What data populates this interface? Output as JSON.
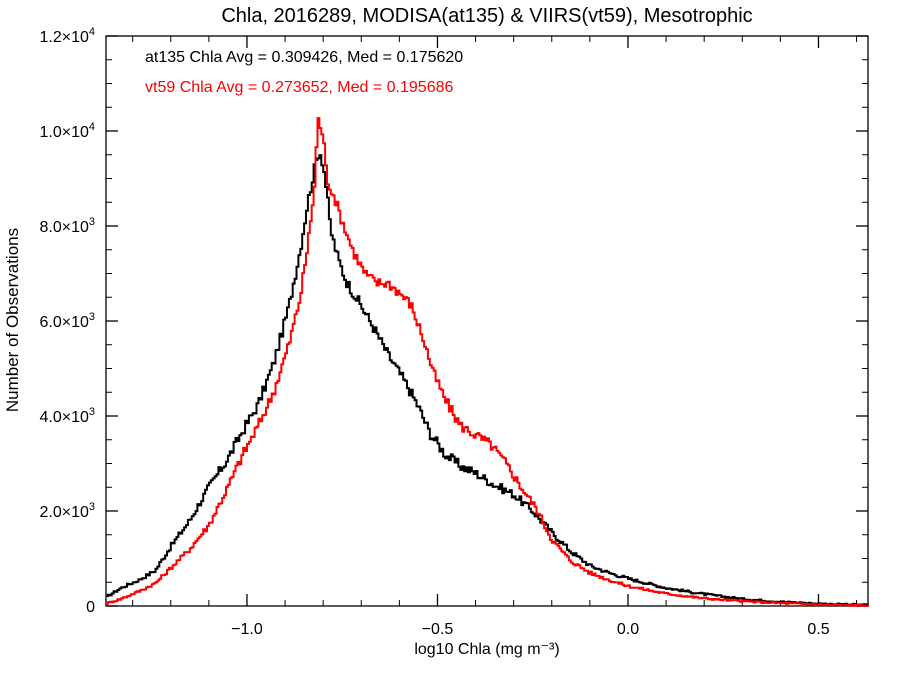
{
  "chart_data": {
    "type": "line",
    "title": "Chla, 2016289, MODISA(at135) & VIIRS(vt59), Mesotrophic",
    "xlabel": "log10 Chla (mg m⁻³)",
    "ylabel": "Number of Observations",
    "xlim": [
      -1.37,
      0.63
    ],
    "ylim": [
      0,
      12000
    ],
    "xticks": [
      {
        "value": -1.0,
        "label": "−1.0"
      },
      {
        "value": -0.5,
        "label": "−0.5"
      },
      {
        "value": 0.0,
        "label": "0.0"
      },
      {
        "value": 0.5,
        "label": "0.5"
      }
    ],
    "yticks": [
      {
        "value": 0,
        "mant": "0",
        "exp": ""
      },
      {
        "value": 2000,
        "mant": "2.0×10",
        "exp": "3"
      },
      {
        "value": 4000,
        "mant": "4.0×10",
        "exp": "3"
      },
      {
        "value": 6000,
        "mant": "6.0×10",
        "exp": "3"
      },
      {
        "value": 8000,
        "mant": "8.0×10",
        "exp": "3"
      },
      {
        "value": 10000,
        "mant": "1.0×10",
        "exp": "4"
      },
      {
        "value": 12000,
        "mant": "1.2×10",
        "exp": "4"
      }
    ],
    "grid": false,
    "annotations": [
      {
        "text": "at135 Chla Avg = 0.309426, Med = 0.175620",
        "color": "#000000"
      },
      {
        "text": "vt59 Chla Avg = 0.273652, Med = 0.195686",
        "color": "#ff0000"
      }
    ],
    "series": [
      {
        "color": "#000000",
        "points": [
          [
            -1.37,
            180
          ],
          [
            -1.33,
            380
          ],
          [
            -1.28,
            560
          ],
          [
            -1.24,
            750
          ],
          [
            -1.2,
            1250
          ],
          [
            -1.15,
            1800
          ],
          [
            -1.1,
            2500
          ],
          [
            -1.05,
            3100
          ],
          [
            -1.01,
            3700
          ],
          [
            -0.97,
            4250
          ],
          [
            -0.93,
            5100
          ],
          [
            -0.89,
            6300
          ],
          [
            -0.86,
            7500
          ],
          [
            -0.84,
            8500
          ],
          [
            -0.82,
            9300
          ],
          [
            -0.81,
            9600
          ],
          [
            -0.8,
            9300
          ],
          [
            -0.79,
            8700
          ],
          [
            -0.78,
            7900
          ],
          [
            -0.76,
            7300
          ],
          [
            -0.74,
            6850
          ],
          [
            -0.71,
            6450
          ],
          [
            -0.67,
            5900
          ],
          [
            -0.63,
            5300
          ],
          [
            -0.58,
            4650
          ],
          [
            -0.55,
            4200
          ],
          [
            -0.52,
            3650
          ],
          [
            -0.48,
            3200
          ],
          [
            -0.44,
            2950
          ],
          [
            -0.4,
            2800
          ],
          [
            -0.35,
            2550
          ],
          [
            -0.3,
            2350
          ],
          [
            -0.25,
            2000
          ],
          [
            -0.2,
            1550
          ],
          [
            -0.15,
            1150
          ],
          [
            -0.1,
            850
          ],
          [
            -0.05,
            700
          ],
          [
            0.0,
            580
          ],
          [
            0.1,
            380
          ],
          [
            0.2,
            250
          ],
          [
            0.3,
            150
          ],
          [
            0.4,
            90
          ],
          [
            0.5,
            50
          ],
          [
            0.63,
            20
          ]
        ]
      },
      {
        "color": "#ff0000",
        "points": [
          [
            -1.37,
            50
          ],
          [
            -1.33,
            150
          ],
          [
            -1.28,
            320
          ],
          [
            -1.24,
            480
          ],
          [
            -1.2,
            800
          ],
          [
            -1.15,
            1200
          ],
          [
            -1.1,
            1700
          ],
          [
            -1.05,
            2500
          ],
          [
            -1.01,
            3200
          ],
          [
            -0.97,
            3800
          ],
          [
            -0.93,
            4500
          ],
          [
            -0.89,
            5500
          ],
          [
            -0.86,
            6500
          ],
          [
            -0.84,
            7600
          ],
          [
            -0.82,
            9000
          ],
          [
            -0.815,
            10300
          ],
          [
            -0.8,
            9900
          ],
          [
            -0.79,
            9000
          ],
          [
            -0.77,
            8600
          ],
          [
            -0.75,
            8100
          ],
          [
            -0.72,
            7450
          ],
          [
            -0.69,
            7000
          ],
          [
            -0.66,
            6800
          ],
          [
            -0.63,
            6800
          ],
          [
            -0.6,
            6600
          ],
          [
            -0.57,
            6350
          ],
          [
            -0.54,
            5700
          ],
          [
            -0.51,
            4900
          ],
          [
            -0.48,
            4350
          ],
          [
            -0.44,
            3800
          ],
          [
            -0.4,
            3600
          ],
          [
            -0.36,
            3400
          ],
          [
            -0.32,
            3000
          ],
          [
            -0.28,
            2500
          ],
          [
            -0.24,
            2050
          ],
          [
            -0.2,
            1400
          ],
          [
            -0.15,
            950
          ],
          [
            -0.1,
            700
          ],
          [
            -0.05,
            550
          ],
          [
            0.0,
            420
          ],
          [
            0.1,
            260
          ],
          [
            0.2,
            160
          ],
          [
            0.3,
            100
          ],
          [
            0.4,
            60
          ],
          [
            0.5,
            30
          ],
          [
            0.63,
            10
          ]
        ]
      }
    ]
  }
}
